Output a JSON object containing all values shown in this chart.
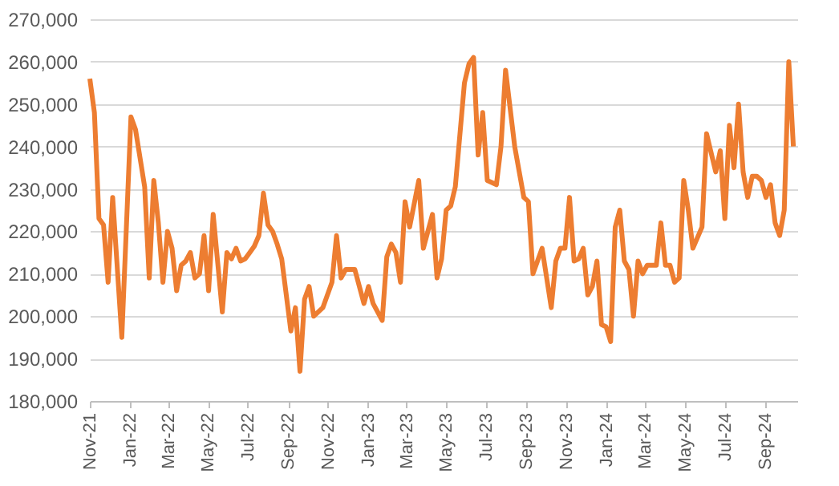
{
  "chart_data": {
    "type": "line",
    "color": "#ed7d31",
    "grid": "y",
    "marker": "none",
    "line_style": "solid",
    "x": [
      "2021-11-01",
      "2021-11-08",
      "2021-11-15",
      "2021-11-22",
      "2021-11-29",
      "2021-12-06",
      "2021-12-20",
      "2022-01-03",
      "2022-01-10",
      "2022-01-24",
      "2022-01-31",
      "2022-02-07",
      "2022-02-14",
      "2022-02-21",
      "2022-02-28",
      "2022-03-07",
      "2022-03-14",
      "2022-03-21",
      "2022-03-28",
      "2022-04-04",
      "2022-04-11",
      "2022-04-18",
      "2022-04-25",
      "2022-05-02",
      "2022-05-09",
      "2022-05-23",
      "2022-05-30",
      "2022-06-06",
      "2022-06-13",
      "2022-06-20",
      "2022-06-27",
      "2022-07-04",
      "2022-07-11",
      "2022-07-18",
      "2022-07-25",
      "2022-08-01",
      "2022-08-08",
      "2022-08-15",
      "2022-08-22",
      "2022-09-05",
      "2022-09-12",
      "2022-09-19",
      "2022-09-26",
      "2022-10-03",
      "2022-10-10",
      "2022-10-24",
      "2022-11-07",
      "2022-11-14",
      "2022-11-21",
      "2022-11-28",
      "2022-12-12",
      "2022-12-26",
      "2023-01-02",
      "2023-01-09",
      "2023-01-23",
      "2023-01-30",
      "2023-02-06",
      "2023-02-13",
      "2023-02-20",
      "2023-02-27",
      "2023-03-06",
      "2023-03-20",
      "2023-03-27",
      "2023-04-10",
      "2023-04-17",
      "2023-04-24",
      "2023-05-01",
      "2023-05-08",
      "2023-05-15",
      "2023-05-29",
      "2023-06-05",
      "2023-06-12",
      "2023-06-19",
      "2023-06-26",
      "2023-07-03",
      "2023-07-17",
      "2023-07-24",
      "2023-07-31",
      "2023-08-14",
      "2023-08-28",
      "2023-09-04",
      "2023-09-11",
      "2023-09-25",
      "2023-10-09",
      "2023-10-16",
      "2023-10-23",
      "2023-10-30",
      "2023-11-06",
      "2023-11-13",
      "2023-11-20",
      "2023-11-27",
      "2023-12-04",
      "2023-12-11",
      "2023-12-18",
      "2023-12-25",
      "2024-01-01",
      "2024-01-08",
      "2024-01-15",
      "2024-01-22",
      "2024-01-29",
      "2024-02-05",
      "2024-02-12",
      "2024-02-19",
      "2024-02-26",
      "2024-03-04",
      "2024-03-18",
      "2024-03-25",
      "2024-04-01",
      "2024-04-08",
      "2024-04-15",
      "2024-04-22",
      "2024-04-29",
      "2024-05-06",
      "2024-05-13",
      "2024-05-27",
      "2024-06-03",
      "2024-06-17",
      "2024-06-24",
      "2024-07-01",
      "2024-07-08",
      "2024-07-15",
      "2024-07-22",
      "2024-07-29",
      "2024-08-05",
      "2024-08-12",
      "2024-08-19",
      "2024-08-26",
      "2024-09-02",
      "2024-09-09",
      "2024-09-16",
      "2024-09-23",
      "2024-09-30",
      "2024-10-07",
      "2024-10-14"
    ],
    "values": [
      256000,
      248000,
      223000,
      221500,
      208000,
      228000,
      195000,
      247000,
      244000,
      230500,
      209000,
      232000,
      222000,
      208000,
      220000,
      216000,
      206000,
      212000,
      213000,
      215000,
      209000,
      210000,
      219000,
      206000,
      224000,
      201000,
      215000,
      213500,
      216000,
      213000,
      213500,
      215000,
      216500,
      219000,
      229000,
      221500,
      220000,
      217000,
      213500,
      196500,
      202000,
      187000,
      204000,
      207000,
      200000,
      202000,
      208000,
      219000,
      209000,
      211000,
      211000,
      203000,
      207000,
      203000,
      199000,
      214000,
      217000,
      215000,
      208000,
      227000,
      221000,
      232000,
      216000,
      224000,
      209000,
      213500,
      225000,
      226000,
      230500,
      255000,
      259500,
      261000,
      238000,
      248000,
      232000,
      231000,
      240000,
      258000,
      240000,
      228000,
      227000,
      210000,
      216000,
      202000,
      213000,
      216000,
      216000,
      228000,
      213000,
      213500,
      216000,
      205000,
      207000,
      213000,
      198000,
      197500,
      194000,
      221000,
      225000,
      213000,
      211000,
      200000,
      213000,
      210000,
      212000,
      212000,
      222000,
      212000,
      212000,
      208000,
      209000,
      232000,
      225000,
      216000,
      221000,
      243000,
      234000,
      239000,
      223000,
      245000,
      235000,
      250000,
      234000,
      228000,
      233000,
      233000,
      232000,
      228000,
      231000,
      222000,
      219000,
      225000,
      260000,
      240000
    ],
    "ylim": [
      180000,
      270000
    ],
    "yticks": [
      {
        "value": 180000,
        "label": "180,000"
      },
      {
        "value": 190000,
        "label": "190,000"
      },
      {
        "value": 200000,
        "label": "200,000"
      },
      {
        "value": 210000,
        "label": "210,000"
      },
      {
        "value": 220000,
        "label": "220,000"
      },
      {
        "value": 230000,
        "label": "230,000"
      },
      {
        "value": 240000,
        "label": "240,000"
      },
      {
        "value": 250000,
        "label": "250,000"
      },
      {
        "value": 260000,
        "label": "260,000"
      },
      {
        "value": 270000,
        "label": "270,000"
      }
    ],
    "xlim": [
      "2021-11-01",
      "2024-10-20"
    ],
    "xticks": [
      {
        "value": "2021-11-01",
        "label": "Nov-21"
      },
      {
        "value": "2022-01-01",
        "label": "Jan-22"
      },
      {
        "value": "2022-03-01",
        "label": "Mar-22"
      },
      {
        "value": "2022-05-01",
        "label": "May-22"
      },
      {
        "value": "2022-07-01",
        "label": "Jul-22"
      },
      {
        "value": "2022-09-01",
        "label": "Sep-22"
      },
      {
        "value": "2022-11-01",
        "label": "Nov-22"
      },
      {
        "value": "2023-01-01",
        "label": "Jan-23"
      },
      {
        "value": "2023-03-01",
        "label": "Mar-23"
      },
      {
        "value": "2023-05-01",
        "label": "May-23"
      },
      {
        "value": "2023-07-01",
        "label": "Jul-23"
      },
      {
        "value": "2023-09-01",
        "label": "Sep-23"
      },
      {
        "value": "2023-11-01",
        "label": "Nov-23"
      },
      {
        "value": "2024-01-01",
        "label": "Jan-24"
      },
      {
        "value": "2024-03-01",
        "label": "Mar-24"
      },
      {
        "value": "2024-05-01",
        "label": "May-24"
      },
      {
        "value": "2024-07-01",
        "label": "Jul-24"
      },
      {
        "value": "2024-09-01",
        "label": "Sep-24"
      }
    ]
  }
}
